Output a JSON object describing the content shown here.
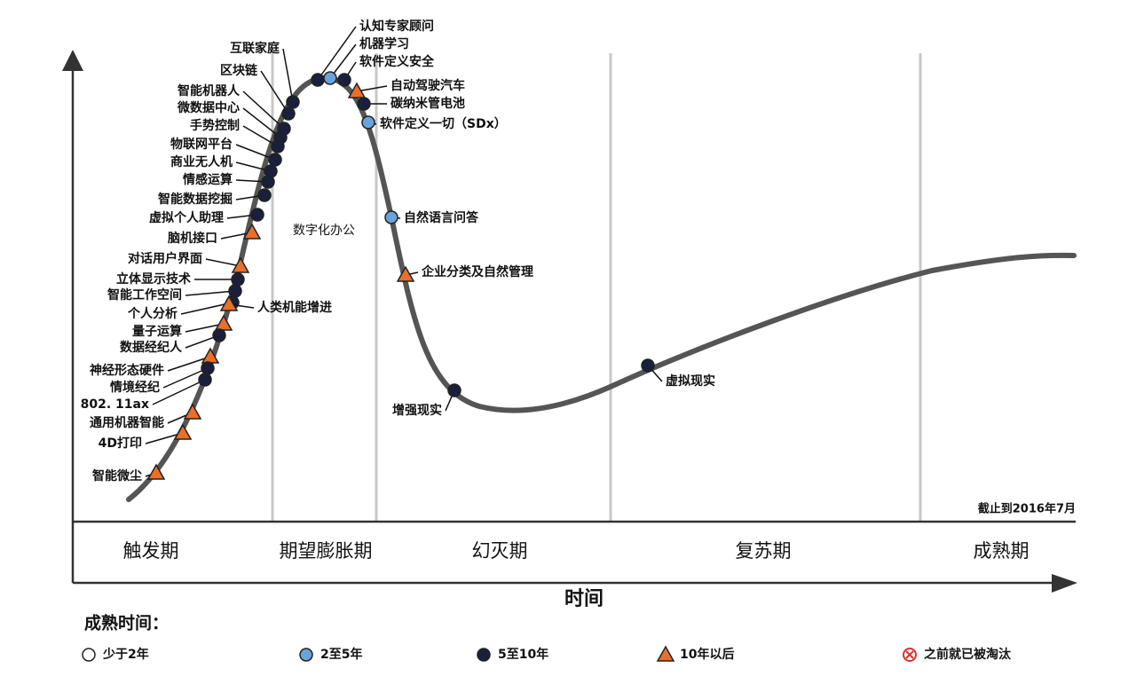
{
  "title_axis": "时间",
  "cutoff": "截止到2016年7月",
  "annotation": "数字化办公",
  "phases": [
    "触发期",
    "期望膨胀期",
    "幻灭期",
    "复苏期",
    "成熟期"
  ],
  "legend": {
    "title": "成熟时间：",
    "items": [
      {
        "label": "少于2年",
        "marker": "white"
      },
      {
        "label": "2至5年",
        "marker": "blue"
      },
      {
        "label": "5至10年",
        "marker": "dark"
      },
      {
        "label": "10年以后",
        "marker": "triangle"
      },
      {
        "label": "之前就已被淘汰",
        "marker": "obsolete"
      }
    ]
  },
  "nodes": [
    {
      "label": "认知专家顾问",
      "marker": "dark"
    },
    {
      "label": "机器学习",
      "marker": "blue"
    },
    {
      "label": "软件定义安全",
      "marker": "dark"
    },
    {
      "label": "自动驾驶汽车",
      "marker": "triangle"
    },
    {
      "label": "碳纳米管电池",
      "marker": "dark"
    },
    {
      "label": "软件定义一切（SDx）",
      "marker": "blue"
    },
    {
      "label": "自然语言问答",
      "marker": "blue"
    },
    {
      "label": "企业分类及自然管理",
      "marker": "triangle"
    },
    {
      "label": "增强现实",
      "marker": "dark"
    },
    {
      "label": "虚拟现实",
      "marker": "dark"
    },
    {
      "label": "互联家庭",
      "marker": "dark"
    },
    {
      "label": "区块链",
      "marker": "dark"
    },
    {
      "label": "智能机器人",
      "marker": "dark"
    },
    {
      "label": "微数据中心",
      "marker": "dark"
    },
    {
      "label": "手势控制",
      "marker": "dark"
    },
    {
      "label": "物联网平台",
      "marker": "dark"
    },
    {
      "label": "商业无人机",
      "marker": "dark"
    },
    {
      "label": "情感运算",
      "marker": "dark"
    },
    {
      "label": "智能数据挖掘",
      "marker": "dark"
    },
    {
      "label": "虚拟个人助理",
      "marker": "dark"
    },
    {
      "label": "脑机接口",
      "marker": "triangle"
    },
    {
      "label": "对话用户界面",
      "marker": "triangle"
    },
    {
      "label": "立体显示技术",
      "marker": "dark"
    },
    {
      "label": "智能工作空间",
      "marker": "dark"
    },
    {
      "label": "个人分析",
      "marker": "dark"
    },
    {
      "label": "人类机能增进",
      "marker": "triangle"
    },
    {
      "label": "量子运算",
      "marker": "triangle"
    },
    {
      "label": "数据经纪人",
      "marker": "dark"
    },
    {
      "label": "神经形态硬件",
      "marker": "triangle"
    },
    {
      "label": "情境经纪",
      "marker": "dark"
    },
    {
      "label": "802. 11ax",
      "marker": "dark"
    },
    {
      "label": "通用机器智能",
      "marker": "triangle"
    },
    {
      "label": "4D打印",
      "marker": "triangle"
    },
    {
      "label": "智能微尘",
      "marker": "triangle"
    }
  ]
}
